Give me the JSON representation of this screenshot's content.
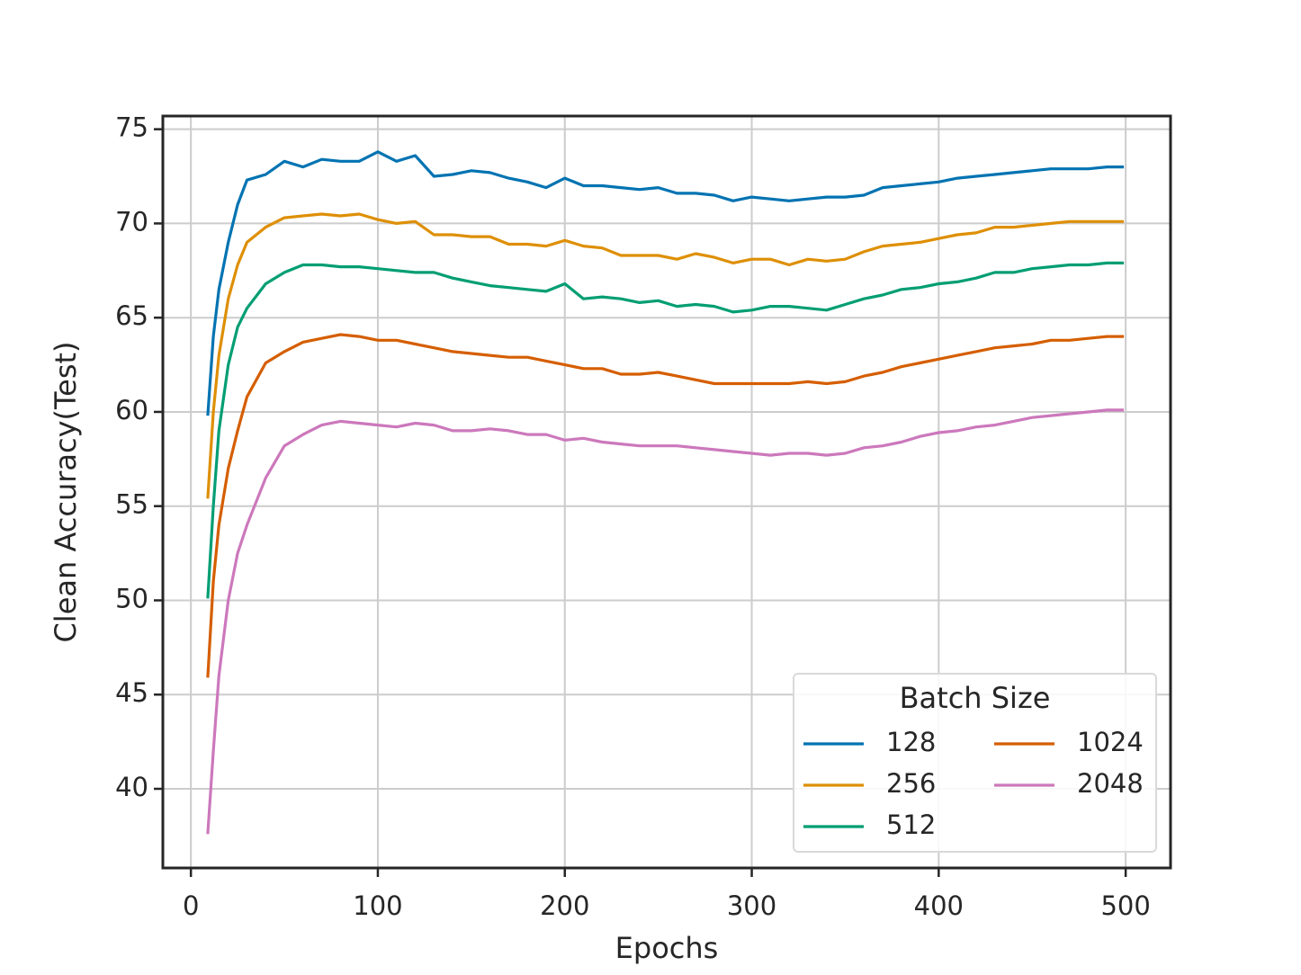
{
  "chart_data": {
    "type": "line",
    "xlabel": "Epochs",
    "ylabel": "Clean Accuracy(Test)",
    "x": [
      9,
      12,
      15,
      20,
      25,
      30,
      40,
      50,
      60,
      70,
      80,
      90,
      100,
      110,
      120,
      130,
      140,
      150,
      160,
      170,
      180,
      190,
      200,
      210,
      220,
      230,
      240,
      250,
      260,
      270,
      280,
      290,
      300,
      310,
      320,
      330,
      340,
      350,
      360,
      370,
      380,
      390,
      400,
      410,
      420,
      430,
      440,
      450,
      460,
      470,
      480,
      490,
      499
    ],
    "series": [
      {
        "name": "128",
        "color": "#0173b2",
        "values": [
          59.8,
          64,
          66.5,
          69,
          71,
          72.3,
          72.6,
          73.3,
          73.0,
          73.4,
          73.3,
          73.3,
          73.8,
          73.3,
          73.6,
          72.5,
          72.6,
          72.8,
          72.7,
          72.4,
          72.2,
          71.9,
          72.4,
          72.0,
          72.0,
          71.9,
          71.8,
          71.9,
          71.6,
          71.6,
          71.5,
          71.2,
          71.4,
          71.3,
          71.2,
          71.3,
          71.4,
          71.4,
          71.5,
          71.9,
          72.0,
          72.1,
          72.2,
          72.4,
          72.5,
          72.6,
          72.7,
          72.8,
          72.9,
          72.9,
          72.9,
          73.0,
          73.0
        ]
      },
      {
        "name": "256",
        "color": "#de8f05",
        "values": [
          55.4,
          60,
          63,
          66,
          67.8,
          69,
          69.8,
          70.3,
          70.4,
          70.5,
          70.4,
          70.5,
          70.2,
          70.0,
          70.1,
          69.4,
          69.4,
          69.3,
          69.3,
          68.9,
          68.9,
          68.8,
          69.1,
          68.8,
          68.7,
          68.3,
          68.3,
          68.3,
          68.1,
          68.4,
          68.2,
          67.9,
          68.1,
          68.1,
          67.8,
          68.1,
          68.0,
          68.1,
          68.5,
          68.8,
          68.9,
          69.0,
          69.2,
          69.4,
          69.5,
          69.8,
          69.8,
          69.9,
          70.0,
          70.1,
          70.1,
          70.1,
          70.1
        ]
      },
      {
        "name": "512",
        "color": "#029e73",
        "values": [
          50.1,
          55,
          59,
          62.5,
          64.5,
          65.5,
          66.8,
          67.4,
          67.8,
          67.8,
          67.7,
          67.7,
          67.6,
          67.5,
          67.4,
          67.4,
          67.1,
          66.9,
          66.7,
          66.6,
          66.5,
          66.4,
          66.8,
          66.0,
          66.1,
          66.0,
          65.8,
          65.9,
          65.6,
          65.7,
          65.6,
          65.3,
          65.4,
          65.6,
          65.6,
          65.5,
          65.4,
          65.7,
          66.0,
          66.2,
          66.5,
          66.6,
          66.8,
          66.9,
          67.1,
          67.4,
          67.4,
          67.6,
          67.7,
          67.8,
          67.8,
          67.9,
          67.9
        ]
      },
      {
        "name": "1024",
        "color": "#d55e00",
        "values": [
          45.9,
          51,
          54,
          57,
          59,
          60.8,
          62.6,
          63.2,
          63.7,
          63.9,
          64.1,
          64.0,
          63.8,
          63.8,
          63.6,
          63.4,
          63.2,
          63.1,
          63.0,
          62.9,
          62.9,
          62.7,
          62.5,
          62.3,
          62.3,
          62.0,
          62.0,
          62.1,
          61.9,
          61.7,
          61.5,
          61.5,
          61.5,
          61.5,
          61.5,
          61.6,
          61.5,
          61.6,
          61.9,
          62.1,
          62.4,
          62.6,
          62.8,
          63.0,
          63.2,
          63.4,
          63.5,
          63.6,
          63.8,
          63.8,
          63.9,
          64.0,
          64.0
        ]
      },
      {
        "name": "2048",
        "color": "#cc78bc",
        "values": [
          37.6,
          42,
          46,
          50,
          52.5,
          54,
          56.5,
          58.2,
          58.8,
          59.3,
          59.5,
          59.4,
          59.3,
          59.2,
          59.4,
          59.3,
          59.0,
          59.0,
          59.1,
          59.0,
          58.8,
          58.8,
          58.5,
          58.6,
          58.4,
          58.3,
          58.2,
          58.2,
          58.2,
          58.1,
          58.0,
          57.9,
          57.8,
          57.7,
          57.8,
          57.8,
          57.7,
          57.8,
          58.1,
          58.2,
          58.4,
          58.7,
          58.9,
          59.0,
          59.2,
          59.3,
          59.5,
          59.7,
          59.8,
          59.9,
          60.0,
          60.1,
          60.1
        ]
      }
    ],
    "xlim": [
      -15,
      524
    ],
    "ylim": [
      35.8,
      75.7
    ],
    "xticks": [
      0,
      100,
      200,
      300,
      400,
      500
    ],
    "yticks": [
      40,
      45,
      50,
      55,
      60,
      65,
      70,
      75
    ],
    "grid": true,
    "legend_title": "Batch Size",
    "legend_loc": "lower right"
  }
}
